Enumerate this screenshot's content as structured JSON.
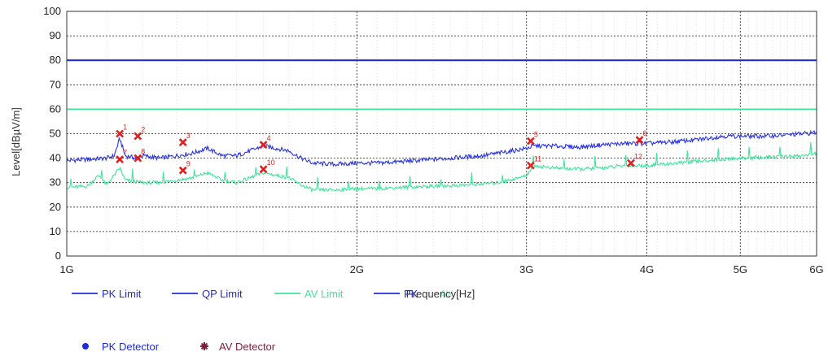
{
  "chart_data": {
    "type": "line",
    "xlabel": "Frequency[Hz]",
    "ylabel": "Level[dBµV/m]",
    "xscale": "log",
    "xlim": [
      1000000000,
      6000000000
    ],
    "ylim": [
      0,
      100
    ],
    "yticks": [
      0,
      10,
      20,
      30,
      40,
      50,
      60,
      70,
      80,
      90,
      100
    ],
    "xticks": [
      {
        "value": 1000000000,
        "label": "1G"
      },
      {
        "value": 2000000000,
        "label": "2G"
      },
      {
        "value": 3000000000,
        "label": "3G"
      },
      {
        "value": 4000000000,
        "label": "4G"
      },
      {
        "value": 5000000000,
        "label": "5G"
      },
      {
        "value": 6000000000,
        "label": "6G"
      }
    ],
    "grid": true,
    "limits": [
      {
        "name": "PK Limit",
        "value": 80,
        "color": "#1f2bd6"
      },
      {
        "name": "QP Limit",
        "value": 80,
        "color": "#1f2bd6"
      },
      {
        "name": "AV Limit",
        "value": 60,
        "color": "#3ee69a"
      }
    ],
    "series": [
      {
        "name": "PK",
        "color": "#2b35e0",
        "points": [
          [
            1000000000,
            39
          ],
          [
            1050000000,
            39.5
          ],
          [
            1100000000,
            40
          ],
          [
            1120000000,
            41
          ],
          [
            1135000000,
            48
          ],
          [
            1150000000,
            41
          ],
          [
            1180000000,
            40
          ],
          [
            1200000000,
            41
          ],
          [
            1250000000,
            40
          ],
          [
            1300000000,
            41
          ],
          [
            1350000000,
            42
          ],
          [
            1400000000,
            44
          ],
          [
            1450000000,
            41
          ],
          [
            1500000000,
            41
          ],
          [
            1550000000,
            43
          ],
          [
            1600000000,
            45
          ],
          [
            1650000000,
            44
          ],
          [
            1700000000,
            43
          ],
          [
            1750000000,
            40
          ],
          [
            1800000000,
            38
          ],
          [
            1900000000,
            37.5
          ],
          [
            2000000000,
            38
          ],
          [
            2100000000,
            38
          ],
          [
            2200000000,
            38.5
          ],
          [
            2300000000,
            39
          ],
          [
            2400000000,
            39.5
          ],
          [
            2500000000,
            40
          ],
          [
            2600000000,
            40.5
          ],
          [
            2700000000,
            41
          ],
          [
            2800000000,
            42
          ],
          [
            2900000000,
            43
          ],
          [
            3000000000,
            44
          ],
          [
            3050000000,
            45
          ],
          [
            3200000000,
            45
          ],
          [
            3400000000,
            44.5
          ],
          [
            3600000000,
            45.5
          ],
          [
            3800000000,
            46
          ],
          [
            4000000000,
            46
          ],
          [
            4200000000,
            46.5
          ],
          [
            4500000000,
            47.5
          ],
          [
            4800000000,
            49
          ],
          [
            5000000000,
            49
          ],
          [
            5300000000,
            49
          ],
          [
            5600000000,
            49.5
          ],
          [
            5800000000,
            50
          ],
          [
            6000000000,
            50.5
          ]
        ]
      },
      {
        "name": "AV",
        "color": "#3ee69a",
        "points": [
          [
            1000000000,
            28
          ],
          [
            1050000000,
            28.5
          ],
          [
            1080000000,
            33
          ],
          [
            1100000000,
            29
          ],
          [
            1135000000,
            36
          ],
          [
            1150000000,
            31
          ],
          [
            1200000000,
            30
          ],
          [
            1250000000,
            30
          ],
          [
            1300000000,
            31
          ],
          [
            1350000000,
            32
          ],
          [
            1400000000,
            34
          ],
          [
            1450000000,
            31
          ],
          [
            1500000000,
            30
          ],
          [
            1550000000,
            32
          ],
          [
            1600000000,
            34
          ],
          [
            1650000000,
            33
          ],
          [
            1700000000,
            32
          ],
          [
            1750000000,
            29
          ],
          [
            1800000000,
            27
          ],
          [
            1900000000,
            27
          ],
          [
            2000000000,
            27.5
          ],
          [
            2100000000,
            27.5
          ],
          [
            2200000000,
            28
          ],
          [
            2400000000,
            28.5
          ],
          [
            2600000000,
            29
          ],
          [
            2800000000,
            30
          ],
          [
            2950000000,
            32
          ],
          [
            3000000000,
            33
          ],
          [
            3050000000,
            37
          ],
          [
            3200000000,
            36
          ],
          [
            3400000000,
            35.5
          ],
          [
            3600000000,
            36
          ],
          [
            3800000000,
            37
          ],
          [
            4000000000,
            37
          ],
          [
            4300000000,
            38
          ],
          [
            4600000000,
            39
          ],
          [
            5000000000,
            40
          ],
          [
            5400000000,
            40.5
          ],
          [
            5800000000,
            41
          ],
          [
            6000000000,
            42
          ]
        ]
      }
    ],
    "markers": [
      {
        "label": "1",
        "x": 1135000000,
        "y": 50
      },
      {
        "label": "2",
        "x": 1185000000,
        "y": 49
      },
      {
        "label": "3",
        "x": 1320000000,
        "y": 46.5
      },
      {
        "label": "4",
        "x": 1600000000,
        "y": 45.5
      },
      {
        "label": "5",
        "x": 3030000000,
        "y": 47
      },
      {
        "label": "6",
        "x": 3930000000,
        "y": 47.5
      },
      {
        "label": "7",
        "x": 1135000000,
        "y": 39.5
      },
      {
        "label": "8",
        "x": 1185000000,
        "y": 40
      },
      {
        "label": "9",
        "x": 1320000000,
        "y": 35
      },
      {
        "label": "10",
        "x": 1600000000,
        "y": 35.5
      },
      {
        "label": "11",
        "x": 3030000000,
        "y": 37
      },
      {
        "label": "12",
        "x": 3850000000,
        "y": 38
      }
    ],
    "legend": {
      "placement": "bottom",
      "lines": [
        {
          "label": "PK Limit",
          "color": "#1f2bd6"
        },
        {
          "label": "QP Limit",
          "color": "#1f2bd6"
        },
        {
          "label": "AV Limit",
          "color": "#3ee69a"
        },
        {
          "label": "PK",
          "color": "#1f2bd6"
        },
        {
          "label": "AV",
          "color": "#3ee69a"
        }
      ],
      "detectors": [
        {
          "label": "PK Detector",
          "color": "#1f2bd6",
          "symbol": "dot"
        },
        {
          "label": "AV Detector",
          "color": "#7a1f3a",
          "symbol": "star"
        }
      ]
    }
  }
}
